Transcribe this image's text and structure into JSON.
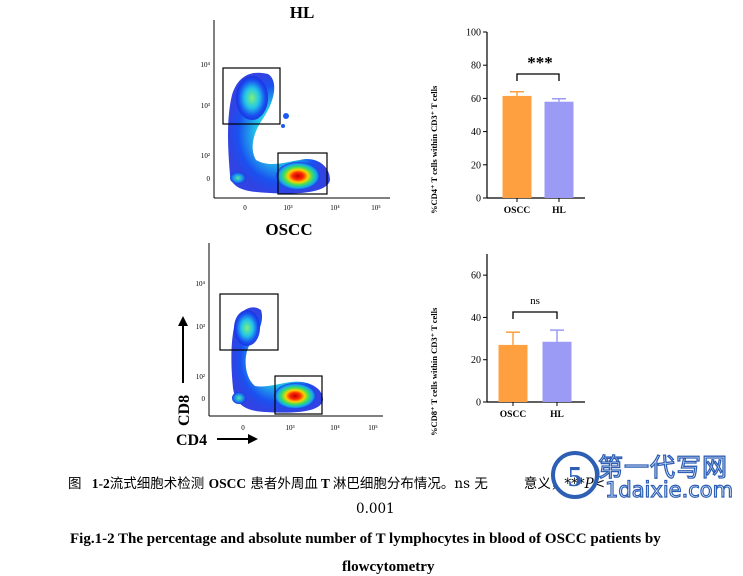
{
  "flow_plots": [
    {
      "title": "HL",
      "x_ticks": [
        "0",
        "10³",
        "10⁴",
        "10⁵"
      ],
      "y_ticks": [
        "10⁴",
        "10³",
        "10²",
        "0"
      ]
    },
    {
      "title": "OSCC",
      "x_ticks": [
        "0",
        "10³",
        "10⁴",
        "10⁵"
      ],
      "y_ticks": [
        "10⁴",
        "10³",
        "10²",
        "0"
      ],
      "y_axis_label": "CD8",
      "x_axis_label": "CD4"
    }
  ],
  "chart_data": [
    {
      "type": "bar",
      "categories": [
        "OSCC",
        "HL"
      ],
      "values": [
        61.5,
        58.0
      ],
      "errors": [
        2.5,
        1.8
      ],
      "ylabel": "%CD4⁺ T cells within CD3⁺ T cells",
      "ylim": [
        0,
        100
      ],
      "yticks": [
        "0",
        "20",
        "40",
        "60",
        "80",
        "100"
      ],
      "significance": "***",
      "colors": [
        "#ffa040",
        "#9b9bf5"
      ]
    },
    {
      "type": "bar",
      "categories": [
        "OSCC",
        "HL"
      ],
      "values": [
        27.0,
        28.5
      ],
      "errors": [
        6.0,
        5.5
      ],
      "ylabel": "%CD8⁺ T cells within CD3⁺ T cells",
      "ylim": [
        0,
        70
      ],
      "yticks": [
        "0",
        "20",
        "40",
        "60"
      ],
      "significance": "ns",
      "colors": [
        "#ffa040",
        "#9b9bf5"
      ]
    }
  ],
  "caption": {
    "cn_prefix": "图",
    "cn_number": "1-2",
    "cn_text_1": "流式细胞术检测",
    "cn_oscc": "OSCC",
    "cn_text_2": "患者外周血",
    "cn_t": "T",
    "cn_text_3": "淋巴细胞分布情况。ns 无",
    "cn_text_4": "意义，***",
    "cn_p": "P",
    "cn_lt": "<",
    "cn_line2": "0.001",
    "en_line1": "Fig.1-2 The percentage and absolute number of T lymphocytes in blood of OSCC patients by",
    "en_line2": "flowcytometry"
  },
  "watermark": {
    "cn": "第一代写网",
    "en": "1daixie.com"
  }
}
